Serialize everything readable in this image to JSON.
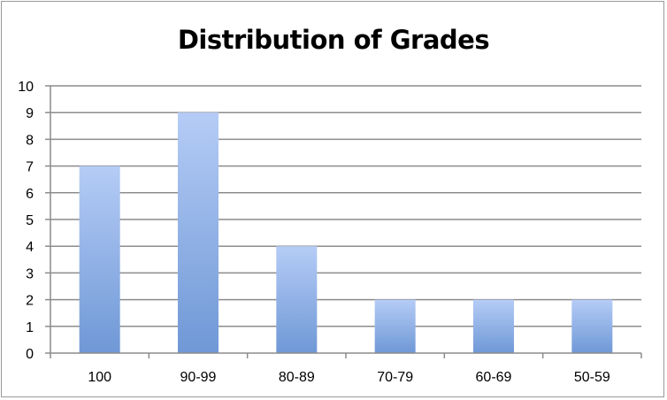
{
  "chart_data": {
    "type": "bar",
    "title": "Distribution of Grades",
    "categories": [
      "100",
      "90-99",
      "80-89",
      "70-79",
      "60-69",
      "50-59"
    ],
    "values": [
      7,
      9,
      4,
      2,
      2,
      2
    ],
    "ylim": [
      0,
      10
    ],
    "yticks": [
      "0",
      "1",
      "2",
      "3",
      "4",
      "5",
      "6",
      "7",
      "8",
      "9",
      "10"
    ],
    "grid": true,
    "legend": "none",
    "bar_gradient": [
      "#b5ccf6",
      "#6f98d6"
    ],
    "gridline_color": "#8c8c8c"
  }
}
